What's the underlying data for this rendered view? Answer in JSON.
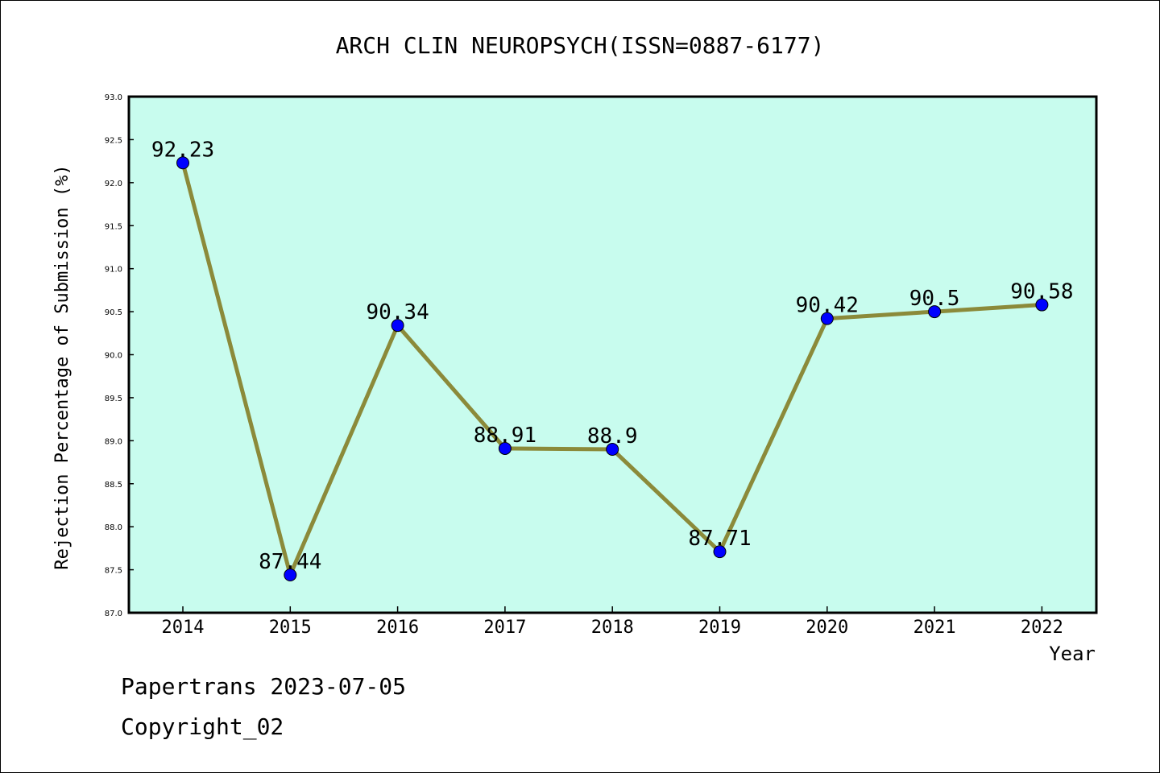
{
  "chart_data": {
    "type": "line",
    "title": "ARCH CLIN NEUROPSYCH(ISSN=0887-6177)",
    "xlabel": "Year",
    "ylabel": "Rejection Percentage of Submission (%)",
    "categories": [
      "2014",
      "2015",
      "2016",
      "2017",
      "2018",
      "2019",
      "2020",
      "2021",
      "2022"
    ],
    "values": [
      92.23,
      87.44,
      90.34,
      88.91,
      88.9,
      87.71,
      90.42,
      90.5,
      90.58
    ],
    "data_labels": [
      "92.23",
      "87.44",
      "90.34",
      "88.91",
      "88.9",
      "87.71",
      "90.42",
      "90.5",
      "90.58"
    ],
    "ylim": [
      87.0,
      93.0
    ],
    "yticks": [
      "87.0",
      "87.5",
      "88.0",
      "88.5",
      "89.0",
      "89.5",
      "90.0",
      "90.5",
      "91.0",
      "91.5",
      "92.0",
      "92.5",
      "93.0"
    ],
    "grid": false,
    "colors": {
      "plot_background": "#c8fcee",
      "line": "#8b8a3a",
      "marker": "#0000ff"
    }
  },
  "footer": {
    "line1": "Papertrans 2023-07-05",
    "line2": "Copyright_02"
  }
}
